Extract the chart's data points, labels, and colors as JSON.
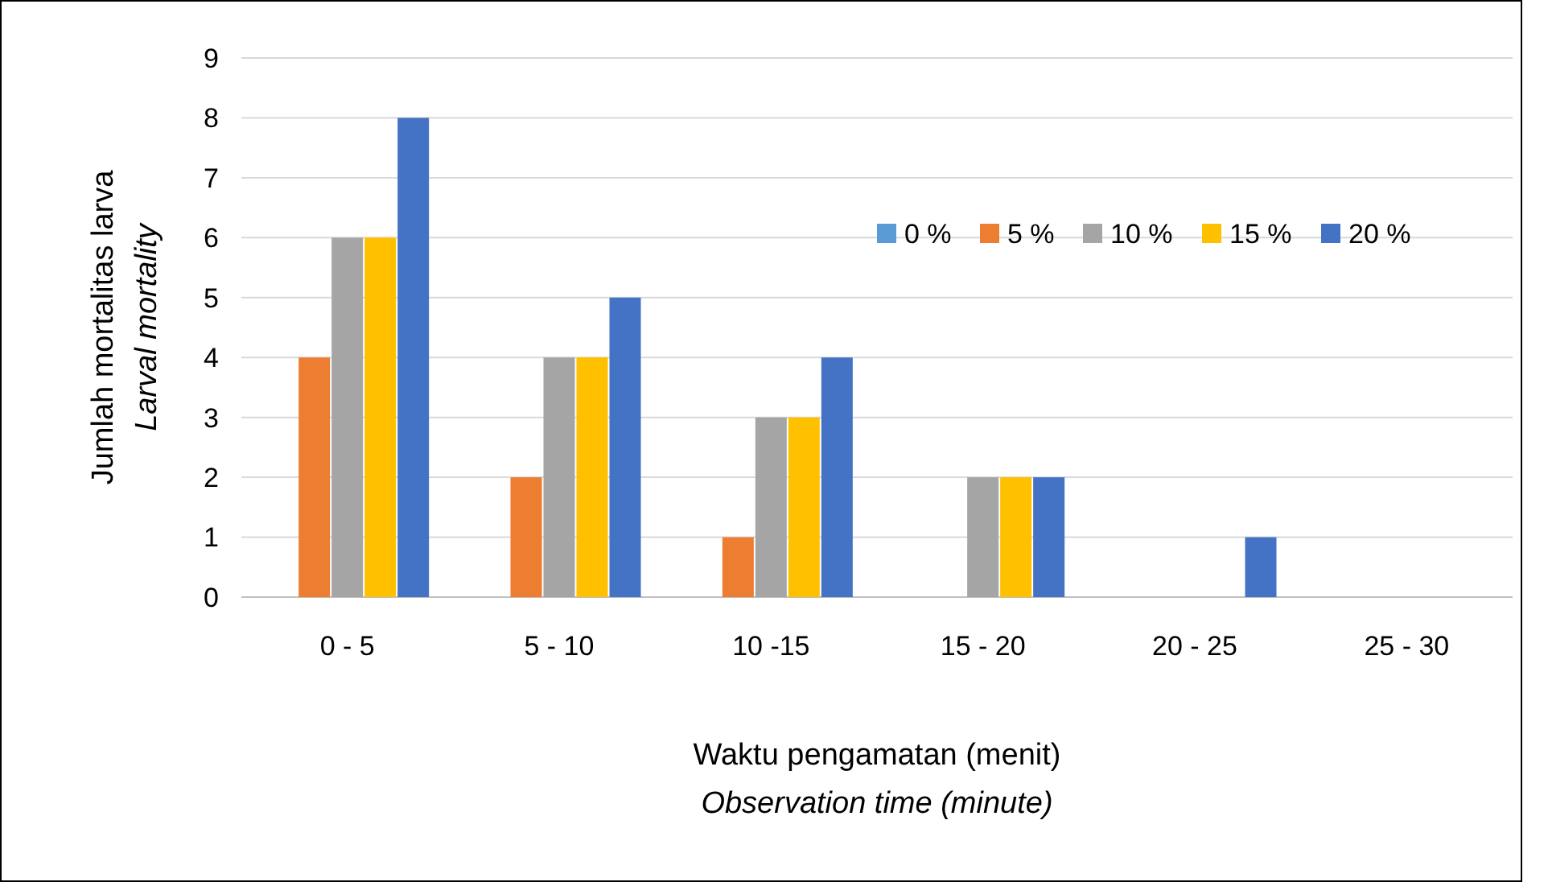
{
  "chart_data": {
    "type": "bar",
    "xlabel": "Waktu pengamatan (menit)\nObservation time (minute)",
    "ylabel": "Jumlah mortalitas larva\nLarval mortality",
    "categories": [
      "0 - 5",
      "5 - 10",
      "10 -15",
      "15 - 20",
      "20 - 25",
      "25 - 30"
    ],
    "series": [
      {
        "name": "0 %",
        "color": "#5b9bd5",
        "values": [
          0,
          0,
          0,
          0,
          0,
          0
        ]
      },
      {
        "name": "5 %",
        "color": "#ed7d31",
        "values": [
          4,
          2,
          1,
          0,
          0,
          0
        ]
      },
      {
        "name": "10 %",
        "color": "#a5a5a5",
        "values": [
          6,
          4,
          3,
          2,
          0,
          0
        ]
      },
      {
        "name": "15 %",
        "color": "#ffc000",
        "values": [
          6,
          4,
          3,
          2,
          0,
          0
        ]
      },
      {
        "name": "20 %",
        "color": "#4472c4",
        "values": [
          8,
          5,
          4,
          2,
          1,
          0
        ]
      }
    ],
    "ylim": [
      0,
      9
    ],
    "yticks": [
      0,
      1,
      2,
      3,
      4,
      5,
      6,
      7,
      8,
      9
    ],
    "grid": "y",
    "legend": "top right"
  }
}
